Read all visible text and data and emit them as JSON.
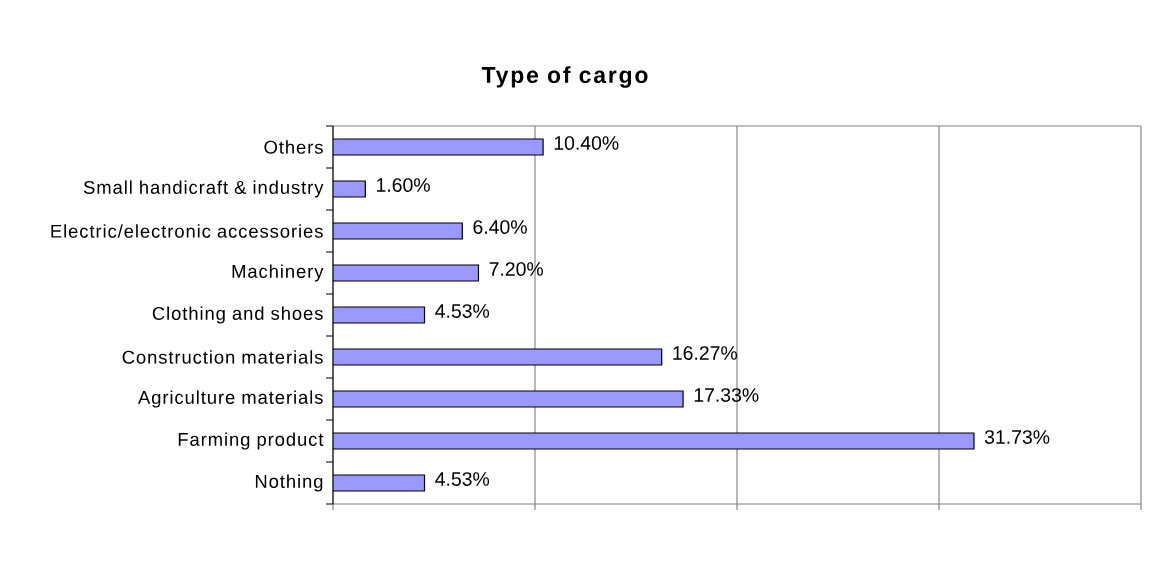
{
  "chart_data": {
    "type": "bar",
    "orientation": "horizontal",
    "title": "Type of cargo",
    "categories": [
      "Others",
      "Small handicraft & industry",
      "Electric/electronic accessories",
      "Machinery",
      "Clothing and shoes",
      "Construction materials",
      "Agriculture materials",
      "Farming product",
      "Nothing"
    ],
    "values": [
      10.4,
      1.6,
      6.4,
      7.2,
      4.53,
      16.27,
      17.33,
      31.73,
      4.53
    ],
    "value_labels": [
      "10.40%",
      "1.60%",
      "6.40%",
      "7.20%",
      "4.53%",
      "16.27%",
      "17.33%",
      "31.73%",
      "4.53%"
    ],
    "color": "#9999ff",
    "xlim": [
      0,
      40
    ],
    "xticks": [
      {
        "value": 0,
        "label": null
      },
      {
        "value": 10,
        "label": null
      },
      {
        "value": 20,
        "label": null
      },
      {
        "value": 30,
        "label": null
      },
      {
        "value": 40,
        "label": null
      }
    ],
    "grid": "x",
    "tick_labels": "y"
  }
}
